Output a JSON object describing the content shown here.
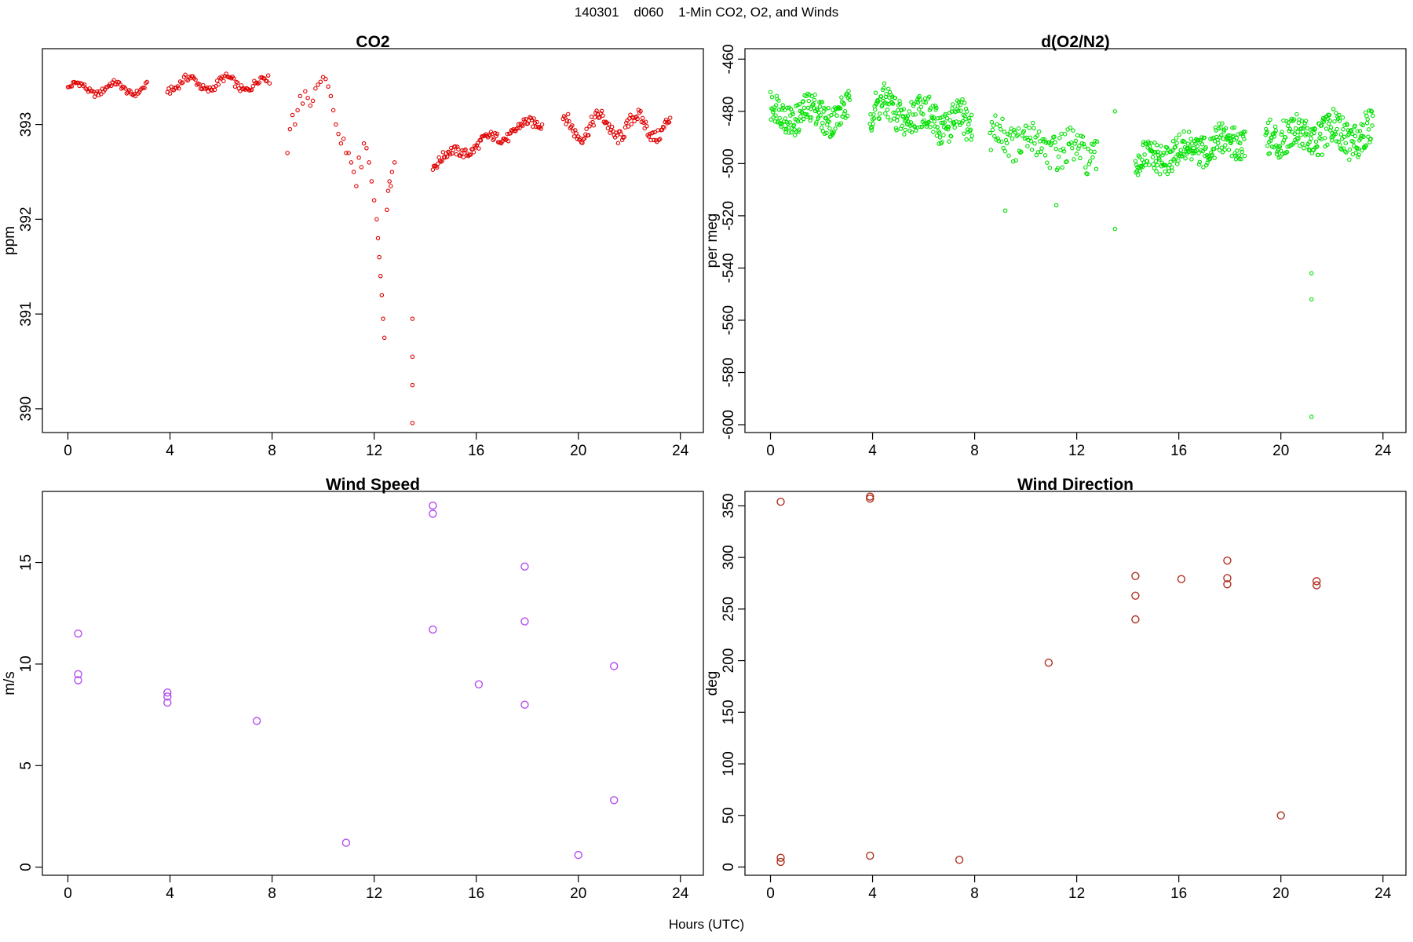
{
  "figure": {
    "title": "140301    d060    1-Min CO2, O2, and Winds",
    "xlabel": "Hours (UTC)"
  },
  "chart_data": [
    {
      "type": "scatter",
      "title": "CO2",
      "ylabel": "ppm",
      "color": "#e00000",
      "marker": "small-circle",
      "xlim": [
        -1,
        24.9
      ],
      "ylim": [
        389.75,
        393.8
      ],
      "xticks": [
        0,
        4,
        8,
        12,
        16,
        20,
        24
      ],
      "yticks": [
        390,
        391,
        392,
        393
      ],
      "segments": [
        {
          "x0": 0.0,
          "x1": 3.1,
          "step": 0.05,
          "base": 393.38,
          "amp": 0.06,
          "jitter": 0.03
        },
        {
          "x0": 3.9,
          "x1": 7.9,
          "step": 0.05,
          "base": 393.43,
          "amp": 0.07,
          "jitter": 0.04
        },
        {
          "x0": 14.3,
          "x1": 18.6,
          "step": 0.04,
          "base_from": 392.6,
          "base_to": 393.05,
          "amp": 0.05,
          "jitter": 0.05
        },
        {
          "x0": 19.4,
          "x1": 23.6,
          "step": 0.04,
          "base": 392.98,
          "amp": 0.12,
          "jitter": 0.07
        }
      ],
      "points": [
        [
          8.6,
          392.7
        ],
        [
          8.7,
          392.95
        ],
        [
          8.8,
          393.1
        ],
        [
          8.9,
          393.0
        ],
        [
          9.0,
          393.15
        ],
        [
          9.1,
          393.3
        ],
        [
          9.2,
          393.22
        ],
        [
          9.3,
          393.35
        ],
        [
          9.4,
          393.28
        ],
        [
          9.5,
          393.2
        ],
        [
          9.6,
          393.25
        ],
        [
          9.7,
          393.38
        ],
        [
          9.8,
          393.42
        ],
        [
          9.9,
          393.45
        ],
        [
          10.0,
          393.5
        ],
        [
          10.1,
          393.48
        ],
        [
          10.2,
          393.4
        ],
        [
          10.3,
          393.3
        ],
        [
          10.4,
          393.15
        ],
        [
          10.5,
          393.0
        ],
        [
          10.6,
          392.9
        ],
        [
          10.7,
          392.8
        ],
        [
          10.8,
          392.85
        ],
        [
          10.9,
          392.7
        ],
        [
          11.0,
          392.7
        ],
        [
          11.1,
          392.6
        ],
        [
          11.2,
          392.5
        ],
        [
          11.3,
          392.35
        ],
        [
          11.4,
          392.65
        ],
        [
          11.5,
          392.55
        ],
        [
          11.6,
          392.8
        ],
        [
          11.7,
          392.75
        ],
        [
          11.8,
          392.6
        ],
        [
          11.9,
          392.4
        ],
        [
          12.0,
          392.2
        ],
        [
          12.1,
          392.0
        ],
        [
          12.15,
          391.8
        ],
        [
          12.2,
          391.6
        ],
        [
          12.25,
          391.4
        ],
        [
          12.3,
          391.2
        ],
        [
          12.35,
          390.95
        ],
        [
          12.4,
          390.75
        ],
        [
          12.5,
          392.1
        ],
        [
          12.55,
          392.3
        ],
        [
          12.6,
          392.4
        ],
        [
          12.65,
          392.35
        ],
        [
          12.7,
          392.5
        ],
        [
          12.8,
          392.6
        ],
        [
          13.5,
          390.95
        ],
        [
          13.5,
          390.55
        ],
        [
          13.5,
          390.25
        ],
        [
          13.5,
          389.85
        ]
      ]
    },
    {
      "type": "scatter",
      "title": "d(O2/N2)",
      "ylabel": "per meg",
      "color": "#00e000",
      "marker": "small-circle",
      "xlim": [
        -1,
        24.9
      ],
      "ylim": [
        -603,
        -456
      ],
      "xticks": [
        0,
        4,
        8,
        12,
        16,
        20,
        24
      ],
      "yticks": [
        -460,
        -480,
        -500,
        -520,
        -540,
        -560,
        -580,
        -600
      ],
      "segments": [
        {
          "x0": 0.0,
          "x1": 3.1,
          "step": 0.02,
          "base": -481,
          "amp": 3,
          "jitter": 6
        },
        {
          "x0": 3.9,
          "x1": 7.9,
          "step": 0.02,
          "base_from": -478,
          "base_to": -486,
          "amp": 3,
          "jitter": 7
        },
        {
          "x0": 8.6,
          "x1": 12.8,
          "step": 0.035,
          "base_from": -489,
          "base_to": -497,
          "amp": 2,
          "jitter": 7
        },
        {
          "x0": 14.3,
          "x1": 18.6,
          "step": 0.02,
          "base_from": -500,
          "base_to": -490,
          "amp": 2,
          "jitter": 6
        },
        {
          "x0": 19.4,
          "x1": 23.6,
          "step": 0.02,
          "base": -489,
          "amp": 3,
          "jitter": 7
        }
      ],
      "points": [
        [
          13.5,
          -525
        ],
        [
          13.5,
          -480
        ],
        [
          21.2,
          -542
        ],
        [
          21.2,
          -552
        ],
        [
          21.2,
          -597
        ],
        [
          9.2,
          -518
        ],
        [
          11.2,
          -516
        ]
      ]
    },
    {
      "type": "scatter",
      "title": "Wind Speed",
      "ylabel": "m/s",
      "color": "#b44cf0",
      "marker": "circle",
      "xlim": [
        -1,
        24.9
      ],
      "ylim": [
        -0.4,
        18.5
      ],
      "xticks": [
        0,
        4,
        8,
        12,
        16,
        20,
        24
      ],
      "yticks": [
        0,
        5,
        10,
        15
      ],
      "points": [
        [
          0.4,
          11.5
        ],
        [
          0.4,
          9.5
        ],
        [
          0.4,
          9.2
        ],
        [
          3.9,
          8.6
        ],
        [
          3.9,
          8.4
        ],
        [
          3.9,
          8.1
        ],
        [
          7.4,
          7.2
        ],
        [
          10.9,
          1.2
        ],
        [
          14.3,
          17.8
        ],
        [
          14.3,
          17.4
        ],
        [
          14.3,
          11.7
        ],
        [
          16.1,
          9.0
        ],
        [
          17.9,
          14.8
        ],
        [
          17.9,
          12.1
        ],
        [
          17.9,
          8.0
        ],
        [
          20.0,
          0.6
        ],
        [
          21.4,
          9.9
        ],
        [
          21.4,
          3.3
        ]
      ]
    },
    {
      "type": "scatter",
      "title": "Wind Direction",
      "ylabel": "deg",
      "color": "#b03020",
      "marker": "circle",
      "xlim": [
        -1,
        24.9
      ],
      "ylim": [
        -8,
        364
      ],
      "xticks": [
        0,
        4,
        8,
        12,
        16,
        20,
        24
      ],
      "yticks": [
        0,
        50,
        100,
        150,
        200,
        250,
        300,
        350
      ],
      "points": [
        [
          0.4,
          354
        ],
        [
          0.4,
          9
        ],
        [
          0.4,
          5
        ],
        [
          3.9,
          359
        ],
        [
          3.9,
          357
        ],
        [
          3.9,
          11
        ],
        [
          7.4,
          7
        ],
        [
          10.9,
          198
        ],
        [
          14.3,
          282
        ],
        [
          14.3,
          263
        ],
        [
          14.3,
          240
        ],
        [
          16.1,
          279
        ],
        [
          17.9,
          297
        ],
        [
          17.9,
          280
        ],
        [
          17.9,
          274
        ],
        [
          20.0,
          50
        ],
        [
          21.4,
          277
        ],
        [
          21.4,
          273
        ]
      ]
    }
  ]
}
